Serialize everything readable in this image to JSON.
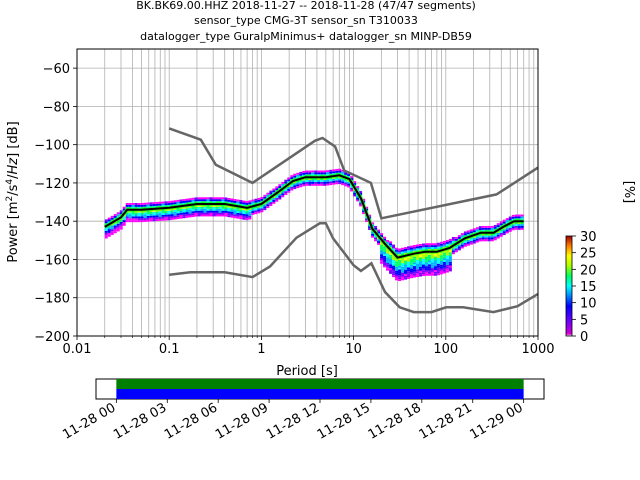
{
  "chart_data": [
    {
      "type": "heatmap",
      "title_lines": [
        "BK.BK69.00.HHZ   2018-11-27 -- 2018-11-28  (47/47 segments)",
        "sensor_type CMG-3T sensor_sn T310033",
        "datalogger_type GuralpMinimus+ datalogger_sn MINP-DB59"
      ],
      "xlabel": "Period [s]",
      "ylabel": "Power [m²/s⁴/Hz] [dB]",
      "x_scale": "log",
      "xlim": [
        0.01,
        1000
      ],
      "ylim": [
        -200,
        -50
      ],
      "x_ticks": [
        0.01,
        0.1,
        1,
        10,
        100,
        1000
      ],
      "x_tick_labels": [
        "0.01",
        "0.1",
        "1",
        "10",
        "100",
        "1000"
      ],
      "y_ticks": [
        -200,
        -180,
        -160,
        -140,
        -120,
        -100,
        -80,
        -60
      ],
      "y_tick_labels": [
        "−200",
        "−180",
        "−160",
        "−140",
        "−120",
        "−100",
        "−80",
        "−60"
      ],
      "grid": true,
      "colorbar": {
        "label": "[%]",
        "ticks": [
          0,
          5,
          10,
          15,
          20,
          25,
          30
        ],
        "tick_labels": [
          "0",
          "5",
          "10",
          "15",
          "20",
          "25",
          "30"
        ],
        "range": [
          0,
          30
        ]
      },
      "series": [
        {
          "role": "noise-model-high",
          "color": "#666666",
          "points": [
            [
              0.1,
              -91.5
            ],
            [
              0.22,
              -97.4
            ],
            [
              0.32,
              -110.5
            ],
            [
              0.8,
              -120
            ],
            [
              3.8,
              -98
            ],
            [
              4.6,
              -96.5
            ],
            [
              6.3,
              -101
            ],
            [
              7.9,
              -113.5
            ],
            [
              15.4,
              -120
            ],
            [
              20,
              -138.5
            ],
            [
              354.8,
              -126
            ],
            [
              1000,
              -112
            ]
          ]
        },
        {
          "role": "noise-model-low",
          "color": "#666666",
          "points": [
            [
              0.1,
              -168
            ],
            [
              0.17,
              -166.7
            ],
            [
              0.4,
              -166.7
            ],
            [
              0.8,
              -169.2
            ],
            [
              1.24,
              -163.7
            ],
            [
              2.4,
              -148.6
            ],
            [
              4.3,
              -141.1
            ],
            [
              5.0,
              -141.1
            ],
            [
              6.0,
              -149
            ],
            [
              10,
              -163
            ],
            [
              12,
              -166
            ],
            [
              15.6,
              -162
            ],
            [
              21.9,
              -177
            ],
            [
              31.6,
              -185
            ],
            [
              45,
              -187.5
            ],
            [
              70,
              -187.5
            ],
            [
              101,
              -185
            ],
            [
              154,
              -185
            ],
            [
              328,
              -187.5
            ],
            [
              600,
              -184.4
            ],
            [
              1000,
              -178
            ]
          ]
        },
        {
          "role": "mode",
          "color": "#000000",
          "points": [
            [
              0.02,
              -143
            ],
            [
              0.03,
              -138
            ],
            [
              0.035,
              -134
            ],
            [
              0.05,
              -134
            ],
            [
              0.1,
              -133
            ],
            [
              0.2,
              -131
            ],
            [
              0.4,
              -131
            ],
            [
              0.7,
              -133
            ],
            [
              1,
              -131
            ],
            [
              1.5,
              -125
            ],
            [
              2.2,
              -119
            ],
            [
              3,
              -117
            ],
            [
              5,
              -117
            ],
            [
              7,
              -116
            ],
            [
              9,
              -118
            ],
            [
              12,
              -128
            ],
            [
              16,
              -144
            ],
            [
              22,
              -152
            ],
            [
              30,
              -159
            ],
            [
              45,
              -157
            ],
            [
              60,
              -156
            ],
            [
              80,
              -156
            ],
            [
              110,
              -154
            ],
            [
              160,
              -149
            ],
            [
              240,
              -146
            ],
            [
              330,
              -146
            ],
            [
              420,
              -143
            ],
            [
              550,
              -140
            ],
            [
              700,
              -140
            ]
          ]
        }
      ]
    },
    {
      "type": "timeline",
      "x_tick_labels": [
        "11-28 00",
        "11-28 03",
        "11-28 06",
        "11-28 09",
        "11-28 12",
        "11-28 15",
        "11-28 18",
        "11-28 21",
        "11-29 00"
      ],
      "tracks": [
        {
          "role": "coverage-used",
          "color": "#008000",
          "start_hours": 0,
          "end_hours": 24
        },
        {
          "role": "coverage-data",
          "color": "#0000ff",
          "start_hours": 0,
          "end_hours": 24
        }
      ],
      "xlim_hours": [
        -1.2,
        25.2
      ]
    }
  ]
}
